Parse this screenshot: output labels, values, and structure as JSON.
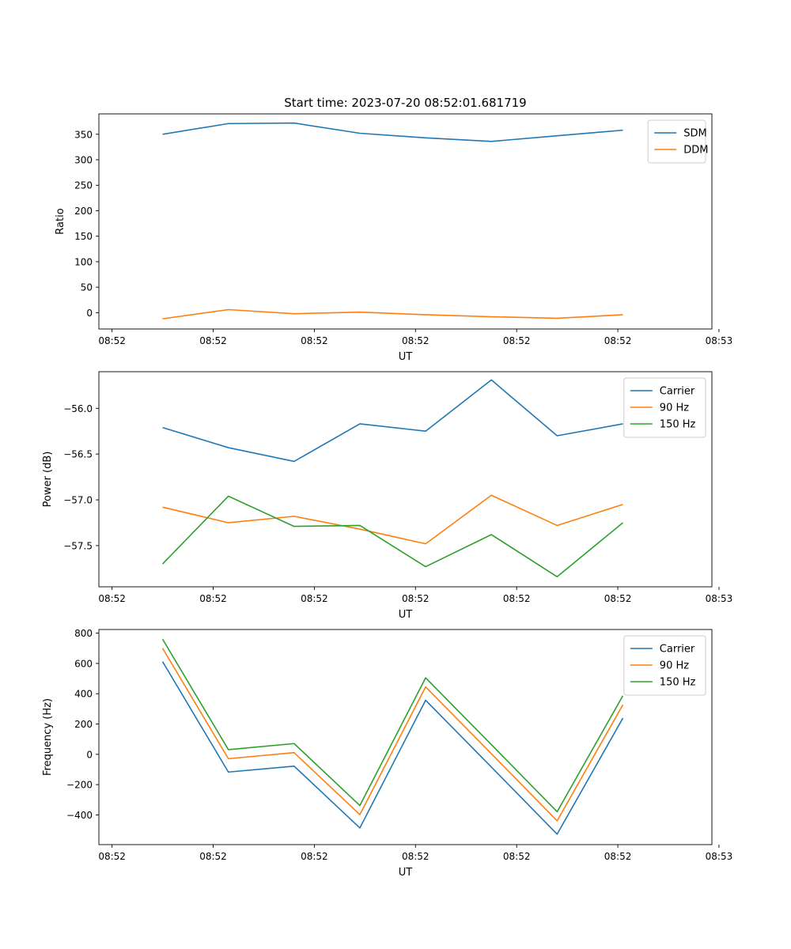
{
  "figure": {
    "title": "Start time: 2023-07-20 08:52:01.681719"
  },
  "chart_data": [
    {
      "type": "line",
      "xlabel": "UT",
      "ylabel": "Ratio",
      "x": [
        0.5,
        1.15,
        1.8,
        2.45,
        3.1,
        3.75,
        4.4,
        5.05
      ],
      "xlim": [
        -0.13,
        5.93
      ],
      "xticks": [
        0,
        1,
        2,
        3,
        4,
        5,
        6
      ],
      "xtick_labels": [
        "08:52",
        "08:52",
        "08:52",
        "08:52",
        "08:52",
        "08:52",
        "08:53"
      ],
      "ylim": [
        -32,
        390
      ],
      "yticks": [
        0,
        50,
        100,
        150,
        200,
        250,
        300,
        350
      ],
      "ytick_labels": [
        "0",
        "50",
        "100",
        "150",
        "200",
        "250",
        "300",
        "350"
      ],
      "legend_position": "top-right",
      "series": [
        {
          "name": "SDM",
          "color": "#1f77b4",
          "values": [
            350,
            371,
            372,
            352,
            343,
            336,
            347,
            358
          ]
        },
        {
          "name": "DDM",
          "color": "#ff7f0e",
          "values": [
            -12,
            6,
            -2,
            1,
            -4,
            -8,
            -11,
            -4
          ]
        }
      ]
    },
    {
      "type": "line",
      "xlabel": "UT",
      "ylabel": "Power (dB)",
      "x": [
        0.5,
        1.15,
        1.8,
        2.45,
        3.1,
        3.75,
        4.4,
        5.05
      ],
      "xlim": [
        -0.13,
        5.93
      ],
      "xticks": [
        0,
        1,
        2,
        3,
        4,
        5,
        6
      ],
      "xtick_labels": [
        "08:52",
        "08:52",
        "08:52",
        "08:52",
        "08:52",
        "08:52",
        "08:53"
      ],
      "ylim": [
        -57.95,
        -55.6
      ],
      "yticks": [
        -57.5,
        -57.0,
        -56.5,
        -56.0
      ],
      "ytick_labels": [
        "−57.5",
        "−57.0",
        "−56.5",
        "−56.0"
      ],
      "legend_position": "top-right",
      "series": [
        {
          "name": "Carrier",
          "color": "#1f77b4",
          "values": [
            -56.21,
            -56.43,
            -56.58,
            -56.17,
            -56.25,
            -55.69,
            -56.3,
            -56.17
          ]
        },
        {
          "name": "90 Hz",
          "color": "#ff7f0e",
          "values": [
            -57.08,
            -57.25,
            -57.18,
            -57.32,
            -57.48,
            -56.95,
            -57.28,
            -57.05
          ]
        },
        {
          "name": "150 Hz",
          "color": "#2ca02c",
          "values": [
            -57.7,
            -56.96,
            -57.29,
            -57.28,
            -57.73,
            -57.38,
            -57.84,
            -57.25
          ]
        }
      ]
    },
    {
      "type": "line",
      "xlabel": "UT",
      "ylabel": "Frequency (Hz)",
      "x": [
        0.5,
        1.15,
        1.8,
        2.45,
        3.1,
        3.75,
        4.4,
        5.05
      ],
      "xlim": [
        -0.13,
        5.93
      ],
      "xticks": [
        0,
        1,
        2,
        3,
        4,
        5,
        6
      ],
      "xtick_labels": [
        "08:52",
        "08:52",
        "08:52",
        "08:52",
        "08:52",
        "08:52",
        "08:53"
      ],
      "ylim": [
        -596,
        824
      ],
      "yticks": [
        -400,
        -200,
        0,
        200,
        400,
        600,
        800
      ],
      "ytick_labels": [
        "−400",
        "−200",
        "0",
        "200",
        "400",
        "600",
        "800"
      ],
      "legend_position": "top-right",
      "series": [
        {
          "name": "Carrier",
          "color": "#1f77b4",
          "values": [
            612,
            -117,
            -78,
            -486,
            357,
            -84,
            -527,
            239
          ]
        },
        {
          "name": "90 Hz",
          "color": "#ff7f0e",
          "values": [
            700,
            -29,
            11,
            -398,
            445,
            4,
            -439,
            327
          ]
        },
        {
          "name": "150 Hz",
          "color": "#2ca02c",
          "values": [
            760,
            31,
            71,
            -338,
            505,
            64,
            -379,
            387
          ]
        }
      ]
    }
  ]
}
